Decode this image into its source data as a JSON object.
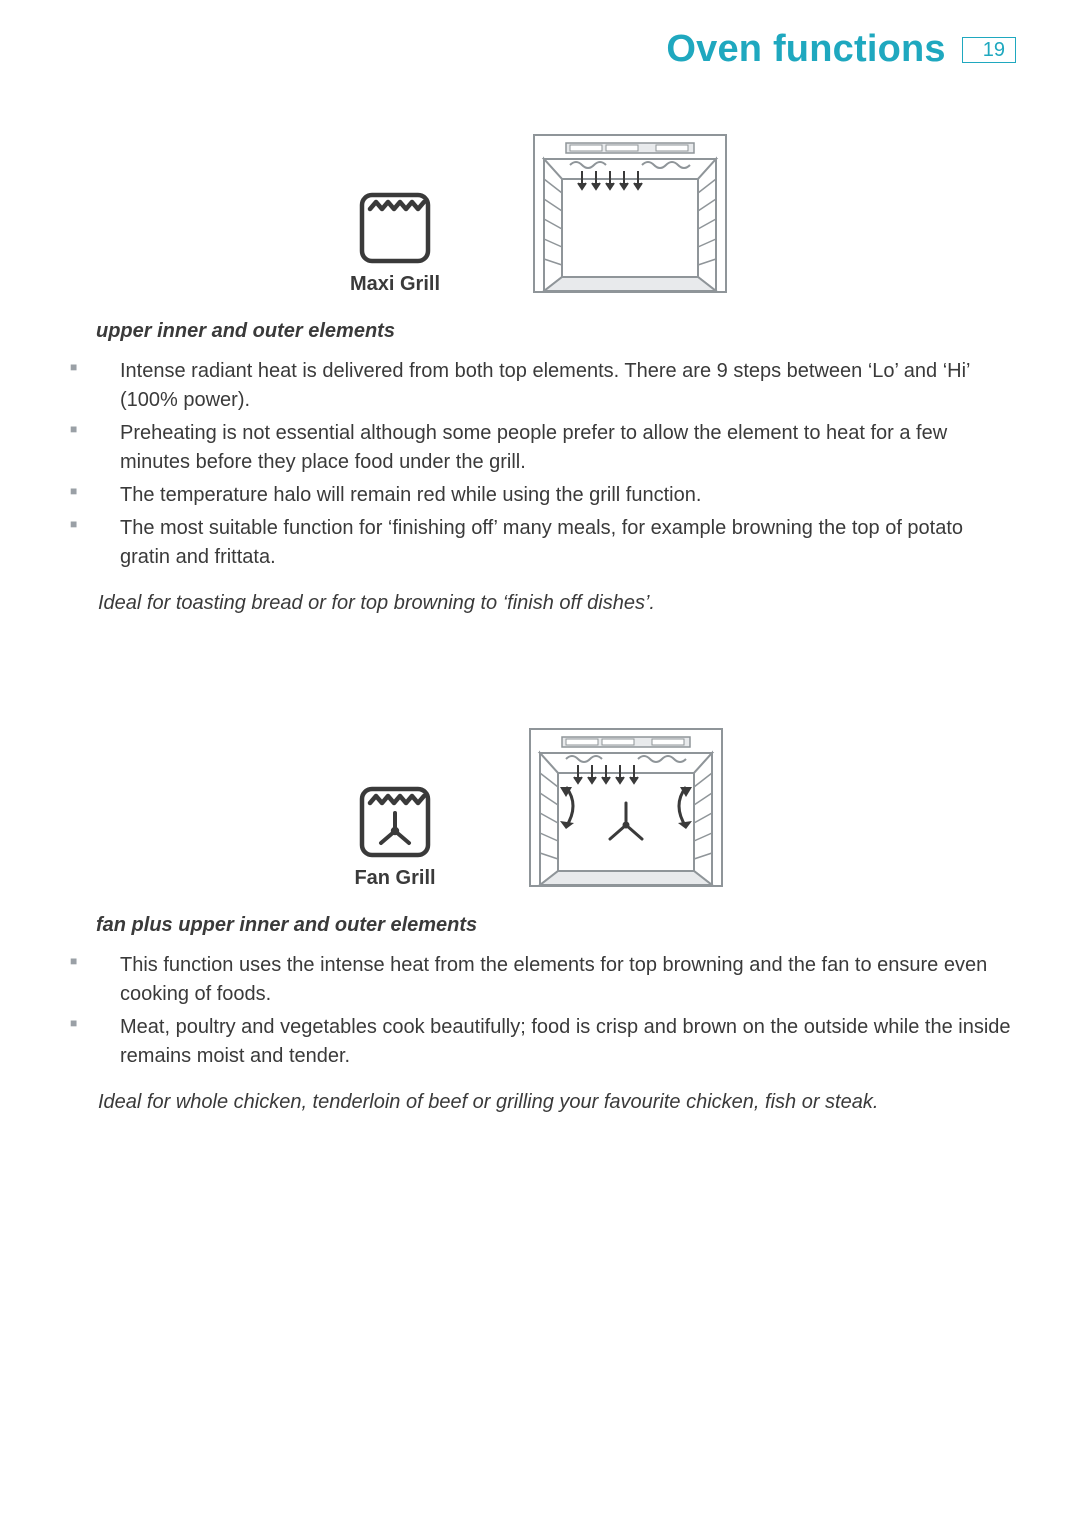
{
  "colors": {
    "accent": "#1fa8bf",
    "text": "#3a3a3a",
    "bullet": "#9aa0a6",
    "diagram_stroke": "#8f9599",
    "diagram_fill_light": "#ffffff",
    "diagram_fill_gray": "#e8eaec"
  },
  "header": {
    "title": "Oven functions",
    "page_number": "19"
  },
  "sections": [
    {
      "icon_label": "Maxi Grill",
      "subhead": "upper inner and outer elements",
      "bullets": [
        "Intense radiant heat is delivered from both top elements. There are 9 steps between ‘Lo’ and ‘Hi’ (100% power).",
        "Preheating is not essential although some people prefer to allow the element to heat for a few minutes before they place food under the grill.",
        "The temperature halo will remain red while using the grill function.",
        "The most suitable function for ‘finishing off’ many meals, for example browning the top of potato gratin and frittata."
      ],
      "ideal": "Ideal for toasting bread or for top browning to ‘finish off dishes’."
    },
    {
      "icon_label": "Fan Grill",
      "subhead": "fan plus upper inner and outer elements",
      "bullets": [
        "This function uses the intense heat from the elements for top browning and the fan to ensure even cooking of foods.",
        "Meat, poultry and vegetables cook beautifully; food is crisp and brown on the outside while the inside remains moist and tender."
      ],
      "ideal": "Ideal for whole chicken, tenderloin of beef or grilling your favourite chicken, fish or steak."
    }
  ]
}
